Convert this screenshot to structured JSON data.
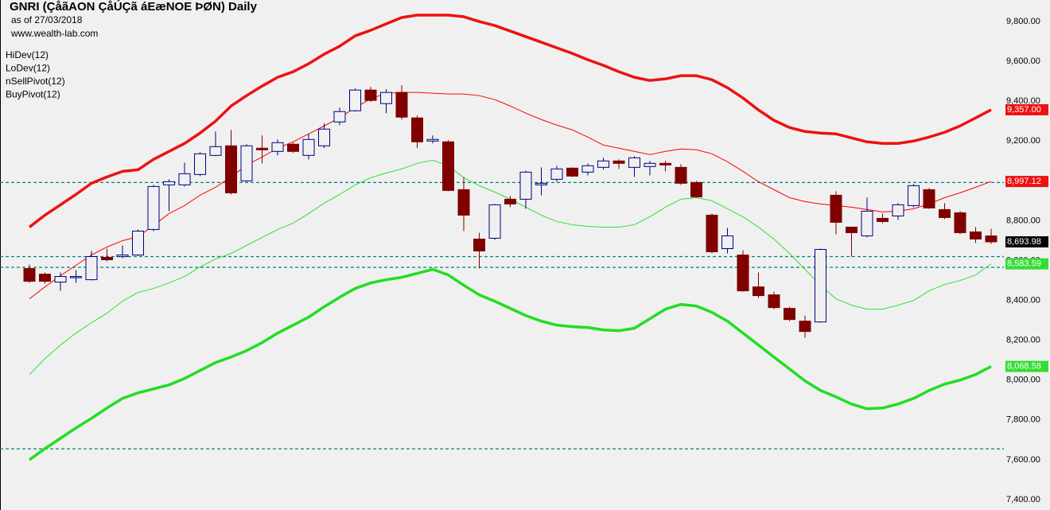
{
  "chart_data": {
    "type": "candlestick",
    "title": "GNRI (ÇåãAON ÇåÚÇã áEæNOE ÞØN) Daily",
    "subtitle": "as of 27/03/2018",
    "source": "www.wealth-lab.com",
    "up_color": "#000080",
    "down_color": "#800000",
    "open": [
      8560,
      8532,
      8492,
      8516,
      8504,
      8616,
      8620,
      8628,
      8756,
      8980,
      8980,
      9032,
      9128,
      9176,
      9000,
      9164,
      9148,
      9184,
      9128,
      9176,
      9296,
      9352,
      9456,
      9388,
      9444,
      9316,
      9200,
      9196,
      8956,
      8708,
      8712,
      8908,
      8908,
      8980,
      9008,
      9064,
      9044,
      9068,
      9100,
      9068,
      9072,
      9088,
      9068,
      8992,
      8828,
      8660,
      8628,
      8468,
      8428,
      8360,
      8296,
      8292,
      8928,
      8768,
      8724,
      8812,
      8824,
      8876,
      8956,
      8856,
      8840,
      8744,
      8724
    ],
    "high": [
      8580,
      8540,
      8540,
      8552,
      8648,
      8660,
      8676,
      8756,
      8980,
      9008,
      9092,
      9144,
      9248,
      9256,
      9184,
      9228,
      9208,
      9192,
      9236,
      9288,
      9368,
      9464,
      9472,
      9460,
      9480,
      9328,
      9228,
      9204,
      9020,
      8740,
      8884,
      8924,
      9052,
      9068,
      9076,
      9068,
      9088,
      9116,
      9108,
      9124,
      9100,
      9100,
      9084,
      9000,
      8836,
      8764,
      8652,
      8540,
      8444,
      8368,
      8324,
      8660,
      8948,
      8768,
      8916,
      8836,
      8888,
      8984,
      8964,
      8888,
      8848,
      8768,
      8760
    ],
    "low": [
      8488,
      8484,
      8448,
      8488,
      8500,
      8596,
      8612,
      8624,
      8748,
      8848,
      8972,
      9024,
      9124,
      8932,
      8996,
      9088,
      9128,
      9140,
      9108,
      9164,
      9280,
      9348,
      9396,
      9340,
      9308,
      9164,
      9188,
      8948,
      8748,
      8560,
      8704,
      8868,
      8860,
      8928,
      8996,
      9020,
      9028,
      9056,
      9060,
      9020,
      9028,
      9048,
      8980,
      8916,
      8636,
      8636,
      8444,
      8412,
      8356,
      8296,
      8212,
      8288,
      8732,
      8620,
      8716,
      8788,
      8804,
      8868,
      8860,
      8808,
      8732,
      8688,
      8684
    ],
    "close": [
      8496,
      8496,
      8520,
      8520,
      8620,
      8604,
      8628,
      8748,
      8972,
      8996,
      9036,
      9136,
      9172,
      8940,
      9176,
      9156,
      9192,
      9148,
      9208,
      9260,
      9348,
      9456,
      9404,
      9444,
      9320,
      9196,
      9208,
      8952,
      8828,
      8648,
      8880,
      8884,
      9044,
      8988,
      9060,
      9024,
      9076,
      9100,
      9088,
      9116,
      9088,
      9080,
      8988,
      8920,
      8644,
      8724,
      8448,
      8424,
      8364,
      8304,
      8244,
      8656,
      8792,
      8740,
      8848,
      8796,
      8880,
      8976,
      8864,
      8816,
      8740,
      8708,
      8693.98
    ],
    "lines": [
      {
        "name": "HiDev(12)",
        "color": "#ee1111",
        "width": 3.5,
        "values": [
          8768,
          8828,
          8880,
          8932,
          8988,
          9020,
          9048,
          9056,
          9108,
          9148,
          9188,
          9240,
          9300,
          9376,
          9428,
          9476,
          9520,
          9548,
          9588,
          9636,
          9676,
          9728,
          9756,
          9788,
          9820,
          9832,
          9832,
          9832,
          9824,
          9800,
          9780,
          9752,
          9724,
          9696,
          9668,
          9640,
          9608,
          9580,
          9548,
          9520,
          9504,
          9512,
          9528,
          9528,
          9508,
          9468,
          9416,
          9356,
          9304,
          9268,
          9248,
          9240,
          9236,
          9216,
          9196,
          9188,
          9188,
          9200,
          9220,
          9244,
          9276,
          9316,
          9357
        ]
      },
      {
        "name": "LoDev(12)",
        "color": "#22dd22",
        "width": 3.5,
        "values": [
          7600,
          7656,
          7708,
          7760,
          7808,
          7860,
          7908,
          7936,
          7956,
          7976,
          8008,
          8048,
          8088,
          8116,
          8148,
          8188,
          8236,
          8276,
          8316,
          8368,
          8416,
          8460,
          8488,
          8504,
          8516,
          8536,
          8556,
          8528,
          8476,
          8428,
          8396,
          8360,
          8324,
          8296,
          8276,
          8268,
          8264,
          8252,
          8248,
          8260,
          8308,
          8356,
          8380,
          8372,
          8340,
          8296,
          8236,
          8176,
          8116,
          8056,
          7996,
          7948,
          7916,
          7880,
          7856,
          7860,
          7880,
          7908,
          7948,
          7980,
          8000,
          8028,
          8068.58
        ]
      },
      {
        "name": "nSellPivot(12)",
        "color": "#ff0000",
        "width": 1,
        "values": [
          8408,
          8468,
          8524,
          8576,
          8628,
          8668,
          8700,
          8720,
          8776,
          8836,
          8876,
          8928,
          8968,
          9020,
          9080,
          9120,
          9164,
          9196,
          9236,
          9276,
          9316,
          9368,
          9412,
          9440,
          9444,
          9444,
          9440,
          9436,
          9436,
          9428,
          9408,
          9376,
          9340,
          9308,
          9280,
          9256,
          9220,
          9180,
          9164,
          9148,
          9132,
          9148,
          9160,
          9156,
          9136,
          9096,
          9048,
          8996,
          8956,
          8916,
          8896,
          8884,
          8876,
          8868,
          8856,
          8844,
          8848,
          8860,
          8884,
          8916,
          8940,
          8968,
          8997.12
        ]
      },
      {
        "name": "BuyPivot(12)",
        "color": "#33dd33",
        "width": 1,
        "values": [
          8028,
          8108,
          8176,
          8236,
          8288,
          8336,
          8396,
          8440,
          8460,
          8488,
          8520,
          8568,
          8608,
          8636,
          8676,
          8716,
          8756,
          8788,
          8836,
          8888,
          8932,
          8980,
          9016,
          9040,
          9060,
          9088,
          9104,
          9076,
          9016,
          8976,
          8944,
          8908,
          8868,
          8828,
          8796,
          8780,
          8772,
          8768,
          8768,
          8780,
          8820,
          8868,
          8908,
          8916,
          8900,
          8860,
          8820,
          8768,
          8708,
          8636,
          8556,
          8476,
          8408,
          8376,
          8356,
          8356,
          8376,
          8400,
          8448,
          8480,
          8500,
          8528,
          8583.59
        ]
      }
    ],
    "levels": [
      8992,
      8620,
      8566,
      7655
    ],
    "level_color": "#008080",
    "price_labels": [
      {
        "value": 9357.0,
        "label": "9,357.00",
        "color": "#ee1111"
      },
      {
        "value": 8997.12,
        "label": "8,997.12",
        "color": "#ee1111"
      },
      {
        "value": 8693.98,
        "label": "8,693.98",
        "color": "#000000"
      },
      {
        "value": 8583.59,
        "label": "8,583.59",
        "color": "#33dd33"
      },
      {
        "value": 8068.58,
        "label": "8,068.58",
        "color": "#33dd33"
      }
    ],
    "ylim": [
      7348,
      9908
    ],
    "yticks": [
      {
        "value": 7400,
        "label": "7,400.00"
      },
      {
        "value": 7600,
        "label": "7,600.00"
      },
      {
        "value": 7800,
        "label": "7,800.00"
      },
      {
        "value": 8000,
        "label": "8,000.00"
      },
      {
        "value": 8200,
        "label": "8,200.00"
      },
      {
        "value": 8400,
        "label": "8,400.00"
      },
      {
        "value": 8600,
        "label": "8,600.00"
      },
      {
        "value": 8800,
        "label": "8,800.00"
      },
      {
        "value": 9000,
        "label": "9,000.00"
      },
      {
        "value": 9200,
        "label": "9,200.00"
      },
      {
        "value": 9400,
        "label": "9,400.00"
      },
      {
        "value": 9600,
        "label": "9,600.00"
      },
      {
        "value": 9800,
        "label": "9,800.00"
      }
    ]
  }
}
